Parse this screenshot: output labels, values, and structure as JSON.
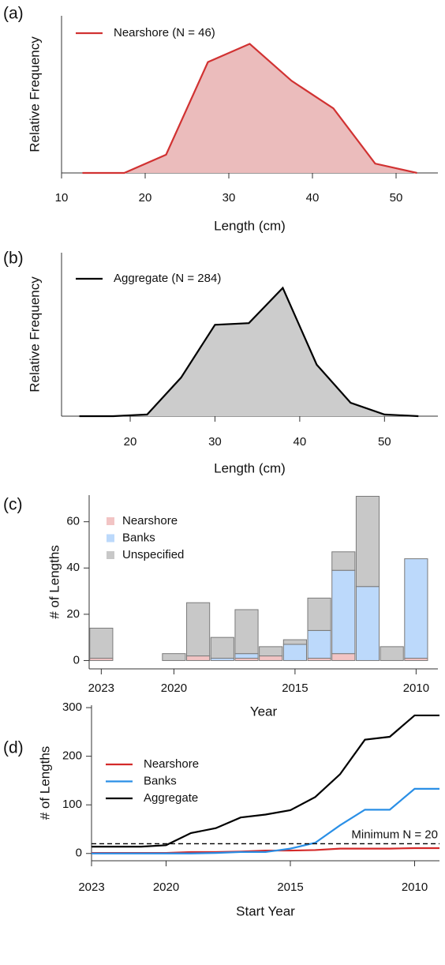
{
  "chart_data": [
    {
      "type": "area",
      "panel_label": "(a)",
      "x_label": "Length (cm)",
      "y_label": "Relative Frequency",
      "x": [
        12.5,
        17.5,
        22.5,
        27.5,
        32.5,
        37.5,
        42.5,
        47.5,
        52.5
      ],
      "series": [
        {
          "name": "Nearshore (N = 46)",
          "color": "#d13232",
          "fill": "#ebbcbc",
          "values": [
            0,
            0,
            0.043,
            0.261,
            0.304,
            0.217,
            0.152,
            0.022,
            0
          ]
        }
      ],
      "xlim": [
        10,
        55
      ],
      "xticks": [
        10,
        20,
        30,
        40,
        50
      ],
      "ylim": [
        0,
        0.37
      ],
      "legend": "top-left"
    },
    {
      "type": "area",
      "panel_label": "(b)",
      "x_label": "Length (cm)",
      "y_label": "Relative Frequency",
      "x": [
        14,
        18,
        22,
        26,
        30,
        34,
        38,
        42,
        46,
        50,
        54
      ],
      "series": [
        {
          "name": "Aggregate (N = 284)",
          "color": "#000000",
          "fill": "#cccccc",
          "values": [
            0,
            0,
            0.004,
            0.092,
            0.218,
            0.222,
            0.306,
            0.123,
            0.032,
            0.004,
            0
          ]
        }
      ],
      "xlim": [
        11.9,
        56.3
      ],
      "xticks": [
        20,
        30,
        40,
        50
      ],
      "ylim": [
        0,
        0.39
      ],
      "legend": "top-left"
    },
    {
      "type": "bar",
      "stacked": true,
      "panel_label": "(c)",
      "x_label": "Year",
      "y_label": "# of Lengths",
      "x": [
        2023,
        2022,
        2021,
        2020,
        2019,
        2018,
        2017,
        2016,
        2015,
        2014,
        2013,
        2012,
        2011,
        2010
      ],
      "series": [
        {
          "name": "Nearshore",
          "color": "#f2c4c4",
          "values": [
            1,
            0,
            0,
            0,
            2,
            0,
            1,
            2,
            0,
            1,
            3,
            0,
            0,
            1
          ]
        },
        {
          "name": "Banks",
          "color": "#bcd9fb",
          "values": [
            0,
            0,
            0,
            0,
            0,
            1,
            2,
            0,
            7,
            12,
            36,
            32,
            0,
            43
          ]
        },
        {
          "name": "Unspecified",
          "color": "#c8c8c8",
          "values": [
            13,
            0,
            0,
            3,
            23,
            9,
            19,
            4,
            2,
            14,
            8,
            39,
            6,
            0
          ]
        }
      ],
      "xlim": [
        2023.5,
        2009.1
      ],
      "xticks": [
        2023,
        2020,
        2015,
        2010
      ],
      "ylim": [
        -3.6,
        71.5
      ],
      "yticks": [
        0,
        20,
        40,
        60
      ],
      "legend": "top-left"
    },
    {
      "type": "line",
      "panel_label": "(d)",
      "x_label": "Start Year",
      "y_label": "# of Lengths",
      "x": [
        2023,
        2022,
        2021,
        2020,
        2019,
        2018,
        2017,
        2016,
        2015,
        2014,
        2013,
        2012,
        2011,
        2010,
        2009
      ],
      "series": [
        {
          "name": "Nearshore",
          "color": "#d42a2a",
          "values": [
            1,
            1,
            1,
            1,
            3,
            3,
            4,
            6,
            6,
            7,
            10,
            10,
            10,
            11,
            11
          ]
        },
        {
          "name": "Banks",
          "color": "#2a8fe6",
          "values": [
            0,
            0,
            0,
            0,
            0,
            1,
            3,
            3,
            10,
            22,
            58,
            90,
            90,
            133,
            133
          ]
        },
        {
          "name": "Aggregate",
          "color": "#000000",
          "values": [
            14,
            14,
            14,
            17,
            42,
            52,
            74,
            80,
            89,
            116,
            163,
            234,
            240,
            284,
            284
          ]
        }
      ],
      "reference_line": {
        "value": 20,
        "label": "Minimum N = 20"
      },
      "xlim": [
        2023,
        2009
      ],
      "xticks": [
        2023,
        2020,
        2015,
        2010
      ],
      "ylim": [
        -15,
        305
      ],
      "yticks": [
        0,
        100,
        200,
        300
      ],
      "legend": "top-left"
    }
  ]
}
